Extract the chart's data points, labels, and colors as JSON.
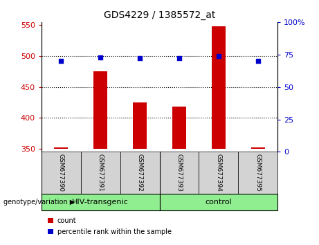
{
  "title": "GDS4229 / 1385572_at",
  "samples": [
    "GSM677390",
    "GSM677391",
    "GSM677392",
    "GSM677393",
    "GSM677394",
    "GSM677395"
  ],
  "counts": [
    352,
    475,
    425,
    418,
    548,
    352
  ],
  "percentiles": [
    70,
    73,
    72,
    72,
    74,
    70
  ],
  "ylim_left": [
    345,
    555
  ],
  "ylim_right": [
    0,
    100
  ],
  "yticks_left": [
    350,
    400,
    450,
    500,
    550
  ],
  "yticks_right": [
    0,
    25,
    50,
    75,
    100
  ],
  "bar_color": "#cc0000",
  "dot_color": "#0000cc",
  "group1_label": "HIV-transgenic",
  "group2_label": "control",
  "group_color": "#90ee90",
  "sample_box_color": "#d3d3d3",
  "genotype_label": "genotype/variation",
  "legend_count": "count",
  "legend_percentile": "percentile rank within the sample",
  "bar_bottom": 350,
  "bar_width": 0.35
}
